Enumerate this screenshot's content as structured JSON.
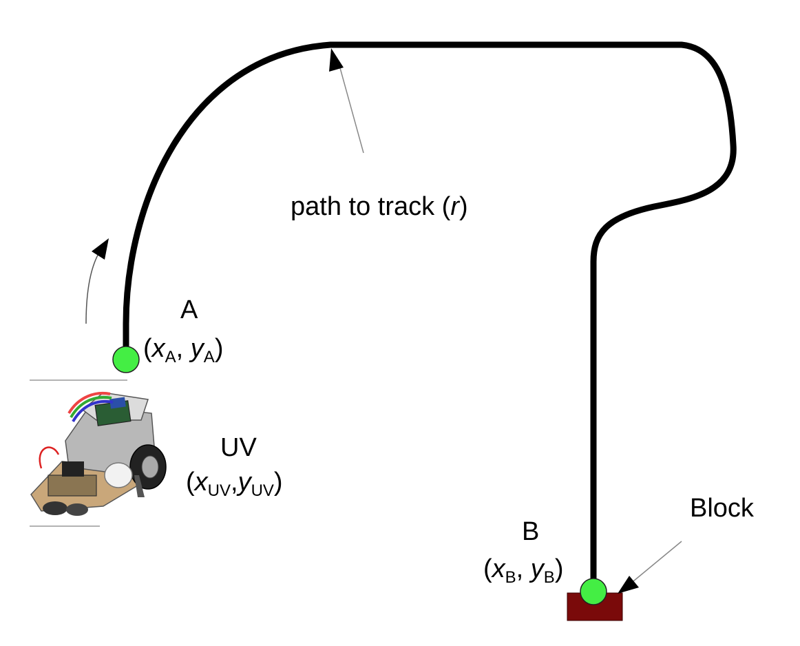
{
  "labels": {
    "path": {
      "prefix": "path to track (",
      "var": "r",
      "suffix": ")"
    },
    "point_a": {
      "name": "A",
      "x": "x",
      "x_sub": "A",
      "y": "y",
      "y_sub": "A"
    },
    "point_b": {
      "name": "B",
      "x": "x",
      "x_sub": "B",
      "y": "y",
      "y_sub": "B"
    },
    "uv": {
      "name": "UV",
      "x": "x",
      "x_sub": "UV",
      "y": "y",
      "y_sub": "UV"
    },
    "block": "Block"
  },
  "colors": {
    "path": "#000000",
    "waypoint": "#44ee44",
    "block": "#7a0a0a",
    "pointer": "#888888"
  },
  "icons": {
    "robot": "robot-vehicle-icon"
  }
}
